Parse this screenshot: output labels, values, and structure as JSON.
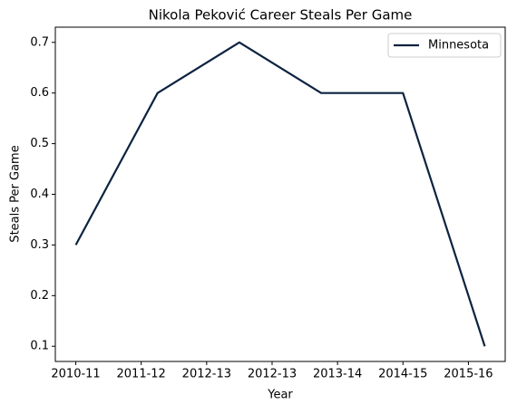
{
  "chart_data": {
    "type": "line",
    "title": "Nikola Peković Career Steals Per Game",
    "xlabel": "Year",
    "ylabel": "Steals Per Game",
    "x": [
      0,
      1,
      2,
      3,
      4,
      5
    ],
    "series": [
      {
        "name": "Minnesota",
        "color": "#0c2340",
        "values": [
          0.3,
          0.6,
          0.7,
          0.6,
          0.6,
          0.1
        ]
      }
    ],
    "xlim": [
      -0.25,
      5.25
    ],
    "xticks": [
      {
        "value": 0,
        "label": "2010-11"
      },
      {
        "value": 0.8,
        "label": "2011-12"
      },
      {
        "value": 1.6,
        "label": "2012-13"
      },
      {
        "value": 2.4,
        "label": "2012-13"
      },
      {
        "value": 3.2,
        "label": "2013-14"
      },
      {
        "value": 4.0,
        "label": "2014-15"
      },
      {
        "value": 4.8,
        "label": "2015-16"
      }
    ],
    "ylim": [
      0.07,
      0.73
    ],
    "yticks": [
      0.1,
      0.2,
      0.3,
      0.4,
      0.5,
      0.6,
      0.7
    ],
    "grid": false,
    "legend": "upper right"
  }
}
